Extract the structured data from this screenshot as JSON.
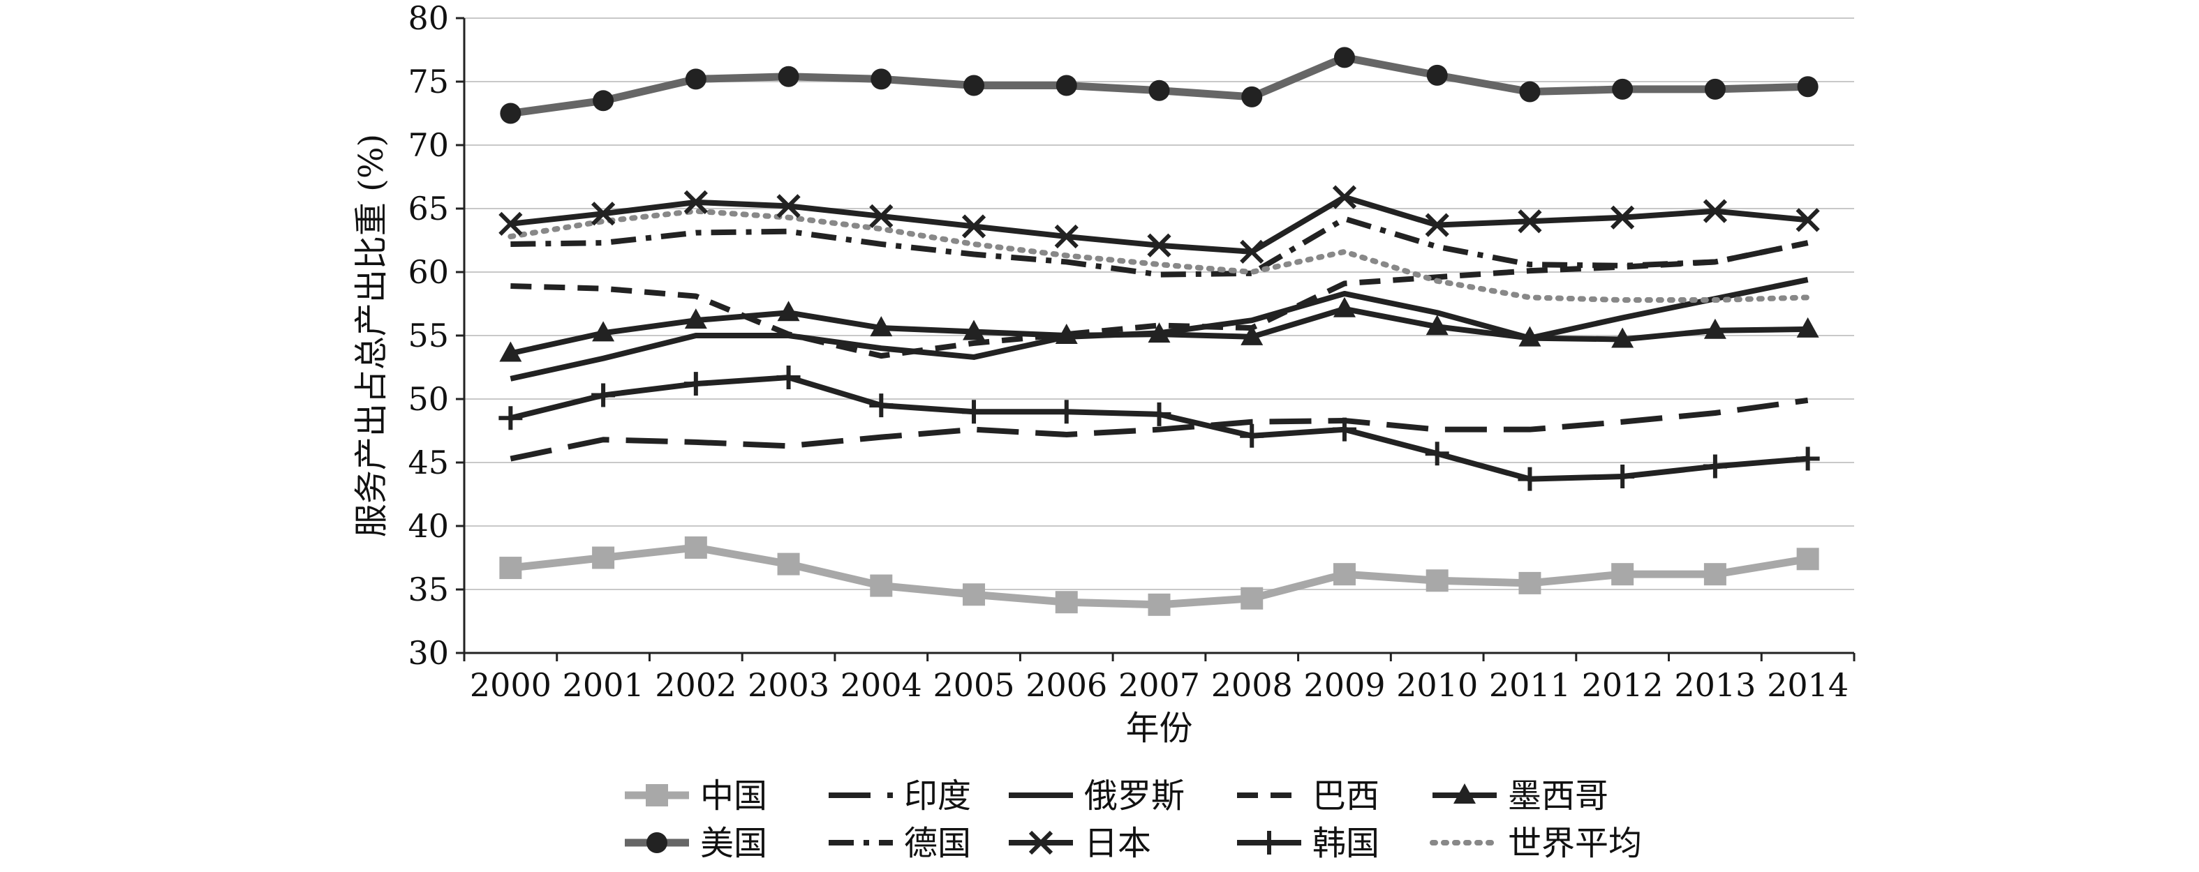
{
  "chart_data": {
    "type": "line",
    "xlabel": "年份",
    "ylabel": "服务产出占总产出比重 (%)",
    "x": [
      "2000",
      "2001",
      "2002",
      "2003",
      "2004",
      "2005",
      "2006",
      "2007",
      "2008",
      "2009",
      "2010",
      "2011",
      "2012",
      "2013",
      "2014"
    ],
    "ylim": [
      30,
      80
    ],
    "yticks": [
      30,
      35,
      40,
      45,
      50,
      55,
      60,
      65,
      70,
      75,
      80
    ],
    "grid": "horizontal",
    "legend_position": "bottom",
    "series": [
      {
        "name": "中国",
        "color": "#a8a8a8",
        "dash": "solid",
        "marker": "square",
        "values": [
          36.7,
          37.5,
          38.3,
          37.0,
          35.3,
          34.6,
          34.0,
          33.8,
          34.3,
          36.2,
          35.7,
          35.5,
          36.2,
          36.2,
          37.4
        ]
      },
      {
        "name": "印度",
        "color": "#222222",
        "dash": "longdash",
        "marker": "none",
        "values": [
          45.3,
          46.8,
          46.6,
          46.3,
          47.0,
          47.6,
          47.2,
          47.6,
          48.2,
          48.3,
          47.6,
          47.6,
          48.2,
          48.9,
          49.9
        ]
      },
      {
        "name": "俄罗斯",
        "color": "#222222",
        "dash": "solid",
        "marker": "none",
        "values": [
          51.6,
          53.2,
          55.0,
          55.0,
          54.0,
          53.3,
          54.9,
          55.2,
          56.2,
          58.3,
          56.8,
          54.8,
          56.4,
          57.9,
          59.4
        ]
      },
      {
        "name": "巴西",
        "color": "#222222",
        "dash": "dash",
        "marker": "none",
        "values": [
          58.9,
          58.7,
          58.1,
          55.1,
          53.4,
          54.4,
          55.1,
          55.8,
          55.6,
          59.1,
          59.6,
          60.1,
          60.4,
          60.8,
          62.3
        ]
      },
      {
        "name": "墨西哥",
        "color": "#222222",
        "dash": "solid",
        "marker": "triangle",
        "values": [
          53.6,
          55.2,
          56.2,
          56.8,
          55.6,
          55.3,
          55.0,
          55.1,
          54.9,
          57.1,
          55.7,
          54.8,
          54.7,
          55.4,
          55.5
        ]
      },
      {
        "name": "美国",
        "color": "#666666",
        "dash": "solid",
        "marker": "circle",
        "values": [
          72.5,
          73.5,
          75.2,
          75.4,
          75.2,
          74.7,
          74.7,
          74.3,
          73.8,
          76.9,
          75.5,
          74.2,
          74.4,
          74.4,
          74.6
        ]
      },
      {
        "name": "德国",
        "color": "#222222",
        "dash": "dashdot",
        "marker": "none",
        "values": [
          62.2,
          62.3,
          63.1,
          63.2,
          62.2,
          61.4,
          60.8,
          59.8,
          59.9,
          64.2,
          62.0,
          60.6,
          60.5,
          60.8,
          62.3
        ]
      },
      {
        "name": "日本",
        "color": "#222222",
        "dash": "solid",
        "marker": "cross",
        "values": [
          63.8,
          64.6,
          65.5,
          65.2,
          64.4,
          63.6,
          62.8,
          62.1,
          61.6,
          65.9,
          63.7,
          64.0,
          64.3,
          64.8,
          64.1
        ]
      },
      {
        "name": "韩国",
        "color": "#222222",
        "dash": "solid",
        "marker": "plus",
        "values": [
          48.5,
          50.3,
          51.2,
          51.7,
          49.5,
          49.0,
          49.0,
          48.8,
          47.1,
          47.6,
          45.7,
          43.7,
          43.9,
          44.7,
          45.3
        ]
      },
      {
        "name": "世界平均",
        "color": "#888888",
        "dash": "dot",
        "marker": "none",
        "values": [
          62.8,
          64.0,
          64.8,
          64.3,
          63.4,
          62.2,
          61.3,
          60.6,
          60.0,
          61.6,
          59.3,
          58.0,
          57.8,
          57.8,
          58.0
        ]
      }
    ]
  }
}
